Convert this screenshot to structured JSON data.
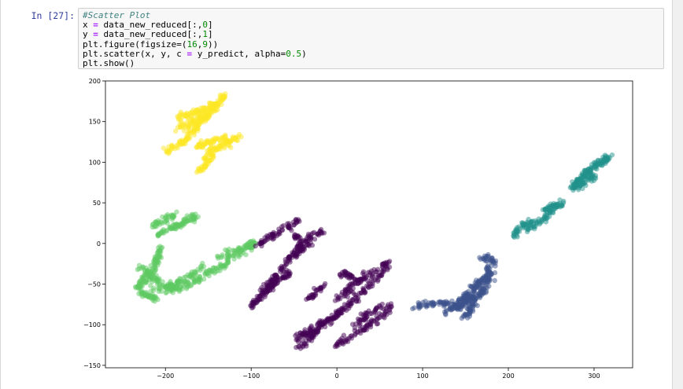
{
  "cell": {
    "prompt": "In [27]:",
    "code": [
      {
        "parts": [
          {
            "t": "#Scatter Plot",
            "c": "comment"
          }
        ]
      },
      {
        "parts": [
          {
            "t": "x "
          },
          {
            "t": "=",
            "c": "op"
          },
          {
            "t": " data_new_reduced[:,"
          },
          {
            "t": "0",
            "c": "num"
          },
          {
            "t": "]"
          }
        ]
      },
      {
        "parts": [
          {
            "t": "y "
          },
          {
            "t": "=",
            "c": "op"
          },
          {
            "t": " data_new_reduced[:,"
          },
          {
            "t": "1",
            "c": "num"
          },
          {
            "t": "]"
          }
        ]
      },
      {
        "parts": [
          {
            "t": "plt.figure(figsize=("
          },
          {
            "t": "16",
            "c": "num"
          },
          {
            "t": ","
          },
          {
            "t": "9",
            "c": "num"
          },
          {
            "t": "))"
          }
        ]
      },
      {
        "parts": [
          {
            "t": "plt.scatter(x, y, c "
          },
          {
            "t": "=",
            "c": "op"
          },
          {
            "t": " y_predict, alpha="
          },
          {
            "t": "0.5",
            "c": "num"
          },
          {
            "t": ")"
          }
        ]
      },
      {
        "parts": [
          {
            "t": "plt.show()"
          }
        ]
      }
    ]
  },
  "chart_data": {
    "type": "scatter",
    "xlim": [
      -270,
      345
    ],
    "ylim": [
      -153,
      200
    ],
    "xticks": [
      -200,
      -100,
      0,
      100,
      200,
      300
    ],
    "yticks": [
      -150,
      -100,
      -50,
      0,
      50,
      100,
      150,
      200
    ],
    "xtick_labels": [
      "−200",
      "−100",
      "0",
      "100",
      "200",
      "300"
    ],
    "ytick_labels": [
      "−150",
      "−100",
      "−50",
      "0",
      "50",
      "100",
      "150",
      "200"
    ],
    "alpha": 0.5,
    "clusters": [
      {
        "color": "#fde725",
        "strokes": [
          {
            "path": [
              [
                -200,
                112
              ],
              [
                -175,
                128
              ],
              [
                -160,
                148
              ],
              [
                -145,
                165
              ],
              [
                -130,
                183
              ]
            ],
            "count": 150
          },
          {
            "path": [
              [
                -185,
                155
              ],
              [
                -165,
                162
              ],
              [
                -140,
                172
              ]
            ],
            "count": 70
          },
          {
            "path": [
              [
                -185,
                140
              ],
              [
                -165,
                150
              ],
              [
                -150,
                160
              ]
            ],
            "count": 60
          },
          {
            "path": [
              [
                -165,
                118
              ],
              [
                -150,
                125
              ],
              [
                -130,
                130
              ]
            ],
            "count": 50
          },
          {
            "path": [
              [
                -155,
                105
              ],
              [
                -145,
                115
              ],
              [
                -130,
                122
              ],
              [
                -115,
                132
              ]
            ],
            "count": 70
          },
          {
            "path": [
              [
                -160,
                90
              ],
              [
                -152,
                100
              ],
              [
                -145,
                110
              ]
            ],
            "count": 40
          }
        ]
      },
      {
        "color": "#5ec962",
        "strokes": [
          {
            "path": [
              [
                -210,
                10
              ],
              [
                -195,
                18
              ],
              [
                -180,
                25
              ],
              [
                -165,
                33
              ]
            ],
            "count": 80
          },
          {
            "path": [
              [
                -215,
                22
              ],
              [
                -200,
                28
              ],
              [
                -190,
                35
              ]
            ],
            "count": 40
          },
          {
            "path": [
              [
                -205,
                0
              ],
              [
                -210,
                -20
              ],
              [
                -215,
                -35
              ],
              [
                -225,
                -45
              ],
              [
                -235,
                -55
              ]
            ],
            "count": 90
          },
          {
            "path": [
              [
                -230,
                -30
              ],
              [
                -215,
                -40
              ],
              [
                -205,
                -50
              ],
              [
                -190,
                -55
              ]
            ],
            "count": 70
          },
          {
            "path": [
              [
                -230,
                -60
              ],
              [
                -220,
                -65
              ],
              [
                -210,
                -68
              ]
            ],
            "count": 40
          },
          {
            "path": [
              [
                -200,
                -55
              ],
              [
                -185,
                -48
              ],
              [
                -170,
                -38
              ],
              [
                -155,
                -28
              ]
            ],
            "count": 60
          },
          {
            "path": [
              [
                -215,
                -55
              ],
              [
                -200,
                -58
              ],
              [
                -185,
                -55
              ],
              [
                -170,
                -50
              ],
              [
                -155,
                -40
              ],
              [
                -145,
                -30
              ]
            ],
            "count": 70
          },
          {
            "path": [
              [
                -145,
                -35
              ],
              [
                -135,
                -28
              ],
              [
                -125,
                -22
              ]
            ],
            "count": 30
          },
          {
            "path": [
              [
                -140,
                -18
              ],
              [
                -125,
                -12
              ],
              [
                -110,
                -5
              ],
              [
                -95,
                2
              ]
            ],
            "count": 50
          },
          {
            "path": [
              [
                -120,
                -20
              ],
              [
                -110,
                -10
              ],
              [
                -100,
                -3
              ]
            ],
            "count": 30
          }
        ]
      },
      {
        "color": "#440154",
        "strokes": [
          {
            "path": [
              [
                -100,
                -78
              ],
              [
                -90,
                -65
              ],
              [
                -80,
                -52
              ],
              [
                -70,
                -40
              ],
              [
                -60,
                -25
              ],
              [
                -50,
                -12
              ],
              [
                -40,
                0
              ],
              [
                -30,
                10
              ],
              [
                -15,
                15
              ]
            ],
            "count": 160
          },
          {
            "path": [
              [
                -85,
                -60
              ],
              [
                -75,
                -50
              ],
              [
                -65,
                -42
              ],
              [
                -55,
                -35
              ]
            ],
            "count": 50
          },
          {
            "path": [
              [
                -90,
                0
              ],
              [
                -75,
                10
              ],
              [
                -60,
                20
              ],
              [
                -45,
                28
              ]
            ],
            "count": 60
          },
          {
            "path": [
              [
                -50,
                -15
              ],
              [
                -40,
                -5
              ],
              [
                -30,
                0
              ]
            ],
            "count": 30
          },
          {
            "path": [
              [
                -50,
                -120
              ],
              [
                -35,
                -110
              ],
              [
                -20,
                -100
              ],
              [
                -5,
                -90
              ],
              [
                10,
                -82
              ]
            ],
            "count": 80
          },
          {
            "path": [
              [
                -45,
                -130
              ],
              [
                -30,
                -115
              ],
              [
                -15,
                -100
              ],
              [
                0,
                -88
              ],
              [
                15,
                -75
              ],
              [
                30,
                -60
              ],
              [
                45,
                -45
              ],
              [
                60,
                -30
              ]
            ],
            "count": 140
          },
          {
            "path": [
              [
                -35,
                -70
              ],
              [
                -25,
                -60
              ],
              [
                -15,
                -52
              ]
            ],
            "count": 30
          },
          {
            "path": [
              [
                0,
                -70
              ],
              [
                10,
                -60
              ],
              [
                20,
                -50
              ],
              [
                35,
                -40
              ],
              [
                50,
                -30
              ],
              [
                60,
                -25
              ]
            ],
            "count": 80
          },
          {
            "path": [
              [
                0,
                -125
              ],
              [
                15,
                -115
              ],
              [
                30,
                -105
              ],
              [
                45,
                -95
              ],
              [
                55,
                -85
              ],
              [
                65,
                -75
              ]
            ],
            "count": 80
          },
          {
            "path": [
              [
                5,
                -35
              ],
              [
                15,
                -40
              ],
              [
                25,
                -45
              ]
            ],
            "count": 30
          },
          {
            "path": [
              [
                20,
                -100
              ],
              [
                35,
                -88
              ],
              [
                50,
                -78
              ]
            ],
            "count": 40
          },
          {
            "path": [
              [
                -55,
                20
              ],
              [
                -50,
                10
              ],
              [
                -45,
                5
              ]
            ],
            "count": 20
          }
        ]
      },
      {
        "color": "#3b528b",
        "strokes": [
          {
            "path": [
              [
                90,
                -77
              ],
              [
                110,
                -75
              ],
              [
                125,
                -73
              ],
              [
                135,
                -70
              ]
            ],
            "count": 50
          },
          {
            "path": [
              [
                125,
                -85
              ],
              [
                140,
                -75
              ],
              [
                150,
                -65
              ],
              [
                160,
                -55
              ],
              [
                170,
                -45
              ],
              [
                180,
                -35
              ]
            ],
            "count": 120
          },
          {
            "path": [
              [
                140,
                -80
              ],
              [
                150,
                -72
              ],
              [
                160,
                -65
              ],
              [
                170,
                -58
              ]
            ],
            "count": 60
          },
          {
            "path": [
              [
                150,
                -90
              ],
              [
                155,
                -82
              ],
              [
                160,
                -75
              ]
            ],
            "count": 40
          },
          {
            "path": [
              [
                160,
                -70
              ],
              [
                170,
                -60
              ],
              [
                175,
                -50
              ],
              [
                178,
                -35
              ],
              [
                175,
                -25
              ]
            ],
            "count": 60
          },
          {
            "path": [
              [
                170,
                -20
              ],
              [
                178,
                -18
              ],
              [
                185,
                -25
              ]
            ],
            "count": 30
          }
        ]
      },
      {
        "color": "#21918c",
        "strokes": [
          {
            "path": [
              [
                205,
                10
              ],
              [
                215,
                20
              ],
              [
                225,
                28
              ]
            ],
            "count": 40
          },
          {
            "path": [
              [
                220,
                15
              ],
              [
                235,
                25
              ],
              [
                245,
                35
              ],
              [
                255,
                45
              ],
              [
                265,
                50
              ]
            ],
            "count": 70
          },
          {
            "path": [
              [
                240,
                40
              ],
              [
                250,
                45
              ],
              [
                258,
                48
              ]
            ],
            "count": 25
          },
          {
            "path": [
              [
                275,
                68
              ],
              [
                285,
                80
              ],
              [
                295,
                90
              ],
              [
                305,
                98
              ],
              [
                318,
                106
              ]
            ],
            "count": 140
          },
          {
            "path": [
              [
                280,
                70
              ],
              [
                290,
                76
              ],
              [
                300,
                82
              ]
            ],
            "count": 40
          }
        ]
      }
    ]
  }
}
